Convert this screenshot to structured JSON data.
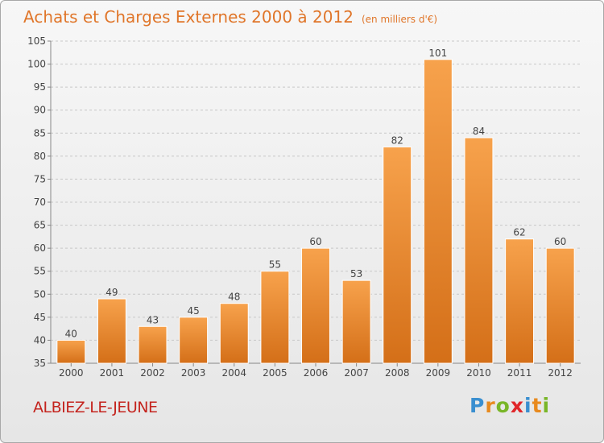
{
  "chart_data": {
    "type": "bar",
    "title": "Achats et Charges Externes 2000 à 2012",
    "subtitle": "(en milliers d'€)",
    "categories": [
      "2000",
      "2001",
      "2002",
      "2003",
      "2004",
      "2005",
      "2006",
      "2007",
      "2008",
      "2009",
      "2010",
      "2011",
      "2012"
    ],
    "values": [
      40,
      49,
      43,
      45,
      48,
      55,
      60,
      53,
      82,
      101,
      84,
      62,
      60
    ],
    "ylim": [
      35,
      105
    ],
    "yticks": [
      35,
      40,
      45,
      50,
      55,
      60,
      65,
      70,
      75,
      80,
      85,
      90,
      95,
      100,
      105
    ],
    "grid": "horizontal dashed",
    "bar_color": "#f0913a"
  },
  "commune": "ALBIEZ-LE-JEUNE",
  "logo": {
    "letters": [
      "P",
      "r",
      "o",
      "x",
      "i",
      "t",
      "i"
    ],
    "colors": [
      "#3a8fd0",
      "#e88a1e",
      "#79b628",
      "#e0262a",
      "#3a8fd0",
      "#e88a1e",
      "#79b628"
    ]
  }
}
